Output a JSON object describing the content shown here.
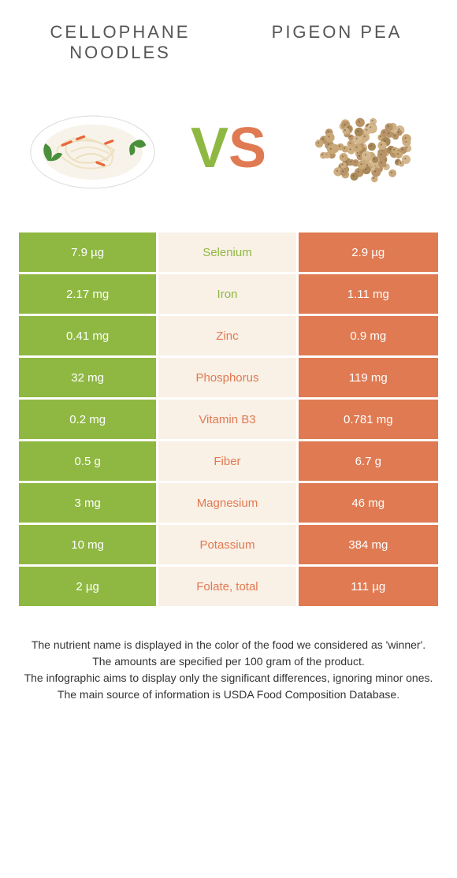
{
  "colors": {
    "green": "#8fb842",
    "orange": "#e07a52",
    "mid_bg": "#f9f0e6",
    "text": "#333333",
    "title": "#555555"
  },
  "header": {
    "left_title": "CELLOPHANE NOODLES",
    "right_title": "PIGEON PEA"
  },
  "vs": {
    "v": "V",
    "s": "S"
  },
  "rows": [
    {
      "left": "7.9 µg",
      "label": "Selenium",
      "right": "2.9 µg",
      "winner": "left"
    },
    {
      "left": "2.17 mg",
      "label": "Iron",
      "right": "1.11 mg",
      "winner": "left"
    },
    {
      "left": "0.41 mg",
      "label": "Zinc",
      "right": "0.9 mg",
      "winner": "right"
    },
    {
      "left": "32 mg",
      "label": "Phosphorus",
      "right": "119 mg",
      "winner": "right"
    },
    {
      "left": "0.2 mg",
      "label": "Vitamin B3",
      "right": "0.781 mg",
      "winner": "right"
    },
    {
      "left": "0.5 g",
      "label": "Fiber",
      "right": "6.7 g",
      "winner": "right"
    },
    {
      "left": "3 mg",
      "label": "Magnesium",
      "right": "46 mg",
      "winner": "right"
    },
    {
      "left": "10 mg",
      "label": "Potassium",
      "right": "384 mg",
      "winner": "right"
    },
    {
      "left": "2 µg",
      "label": "Folate, total",
      "right": "111 µg",
      "winner": "right"
    }
  ],
  "footer": {
    "l1": "The nutrient name is displayed in the color of the food we considered as 'winner'.",
    "l2": "The amounts are specified per 100 gram of the product.",
    "l3": "The infographic aims to display only the significant differences, ignoring minor ones.",
    "l4": "The main source of information is USDA Food Composition Database."
  }
}
